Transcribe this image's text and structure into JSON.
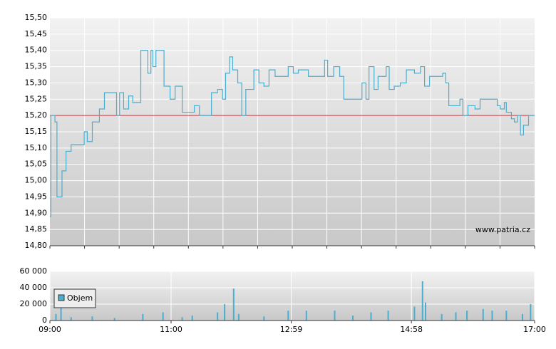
{
  "chart_data": [
    {
      "type": "line",
      "watermark": "www.patria.cz",
      "xlim": [
        "09:00",
        "17:00"
      ],
      "ylim": [
        14.8,
        15.5
      ],
      "yticks": [
        {
          "value": 14.8,
          "label": "14,80"
        },
        {
          "value": 14.85,
          "label": "14,85"
        },
        {
          "value": 14.9,
          "label": "14,90"
        },
        {
          "value": 14.95,
          "label": "14,95"
        },
        {
          "value": 15.0,
          "label": "15,00"
        },
        {
          "value": 15.05,
          "label": "15,05"
        },
        {
          "value": 15.1,
          "label": "15,10"
        },
        {
          "value": 15.15,
          "label": "15,15"
        },
        {
          "value": 15.2,
          "label": "15,20"
        },
        {
          "value": 15.25,
          "label": "15,25"
        },
        {
          "value": 15.3,
          "label": "15,30"
        },
        {
          "value": 15.35,
          "label": "15,35"
        },
        {
          "value": 15.4,
          "label": "15,40"
        },
        {
          "value": 15.45,
          "label": "15,45"
        },
        {
          "value": 15.5,
          "label": "15,50"
        }
      ],
      "reference_line": 15.2,
      "reference_color": "#cc3333",
      "x": [
        "09:00",
        "09:01",
        "09:05",
        "09:07",
        "09:12",
        "09:16",
        "09:21",
        "09:30",
        "09:34",
        "09:37",
        "09:42",
        "09:49",
        "09:54",
        "10:04",
        "10:06",
        "10:09",
        "10:13",
        "10:18",
        "10:22",
        "10:28",
        "10:30",
        "10:34",
        "10:37",
        "10:40",
        "10:42",
        "10:45",
        "10:51",
        "10:53",
        "10:59",
        "11:04",
        "11:08",
        "11:11",
        "11:18",
        "11:23",
        "11:28",
        "11:35",
        "11:40",
        "11:46",
        "11:51",
        "11:54",
        "11:58",
        "12:01",
        "12:06",
        "12:10",
        "12:14",
        "12:19",
        "12:22",
        "12:27",
        "12:32",
        "12:37",
        "12:43",
        "12:54",
        "12:56",
        "13:01",
        "13:06",
        "13:13",
        "13:16",
        "13:25",
        "13:32",
        "13:35",
        "13:41",
        "13:47",
        "13:51",
        "14:04",
        "14:09",
        "14:13",
        "14:16",
        "14:21",
        "14:25",
        "14:33",
        "14:36",
        "14:41",
        "14:47",
        "14:53",
        "15:01",
        "15:07",
        "15:11",
        "15:16",
        "15:29",
        "15:32",
        "15:35",
        "15:42",
        "15:46",
        "15:49",
        "15:54",
        "16:01",
        "16:06",
        "16:19",
        "16:23",
        "16:26",
        "16:30",
        "16:32",
        "16:37",
        "16:40",
        "16:43",
        "16:46",
        "16:49",
        "16:54",
        "17:00"
      ],
      "series": [
        {
          "color": "#4aaed0",
          "values": [
            14.89,
            15.2,
            15.18,
            14.95,
            15.03,
            15.09,
            15.11,
            15.11,
            15.15,
            15.12,
            15.18,
            15.22,
            15.27,
            15.27,
            15.2,
            15.27,
            15.22,
            15.26,
            15.24,
            15.24,
            15.4,
            15.4,
            15.33,
            15.4,
            15.35,
            15.4,
            15.4,
            15.29,
            15.25,
            15.29,
            15.29,
            15.21,
            15.21,
            15.23,
            15.2,
            15.2,
            15.27,
            15.28,
            15.25,
            15.33,
            15.38,
            15.34,
            15.3,
            15.2,
            15.28,
            15.28,
            15.34,
            15.3,
            15.29,
            15.34,
            15.32,
            15.32,
            15.35,
            15.33,
            15.34,
            15.34,
            15.32,
            15.32,
            15.37,
            15.32,
            15.35,
            15.32,
            15.25,
            15.25,
            15.3,
            15.25,
            15.35,
            15.28,
            15.32,
            15.35,
            15.28,
            15.29,
            15.3,
            15.34,
            15.33,
            15.35,
            15.29,
            15.32,
            15.33,
            15.3,
            15.23,
            15.23,
            15.25,
            15.2,
            15.23,
            15.22,
            15.25,
            15.25,
            15.23,
            15.22,
            15.24,
            15.21,
            15.19,
            15.18,
            15.2,
            15.14,
            15.17,
            15.2,
            15.2
          ]
        }
      ]
    },
    {
      "type": "bar",
      "xlim": [
        "09:00",
        "17:00"
      ],
      "xticks": [
        "09:00",
        "11:00",
        "12:59",
        "14:58",
        "17:00"
      ],
      "ylim": [
        0,
        60000
      ],
      "yticks": [
        0,
        {
          "value": 20000,
          "label": "20 000"
        },
        {
          "value": 40000,
          "label": "40 000"
        },
        {
          "value": 60000,
          "label": "60 000"
        }
      ],
      "x": [
        "09:06",
        "09:11",
        "09:21",
        "09:42",
        "10:04",
        "10:32",
        "10:52",
        "11:11",
        "11:21",
        "11:46",
        "11:53",
        "12:02",
        "12:07",
        "12:32",
        "12:56",
        "13:14",
        "13:42",
        "14:00",
        "14:18",
        "14:35",
        "15:01",
        "15:09",
        "15:12",
        "15:28",
        "15:42",
        "15:53",
        "16:09",
        "16:18",
        "16:32",
        "16:48",
        "16:56"
      ],
      "series": [
        {
          "name": "Objem",
          "color": "#4aaed0",
          "values": [
            8000,
            20000,
            4000,
            5000,
            3000,
            8000,
            10000,
            4000,
            6000,
            10000,
            20000,
            39000,
            8000,
            5000,
            12000,
            12000,
            12000,
            6000,
            10000,
            12000,
            17000,
            48000,
            22000,
            8000,
            10000,
            12000,
            14000,
            12000,
            12000,
            8000,
            20000
          ]
        }
      ]
    }
  ]
}
